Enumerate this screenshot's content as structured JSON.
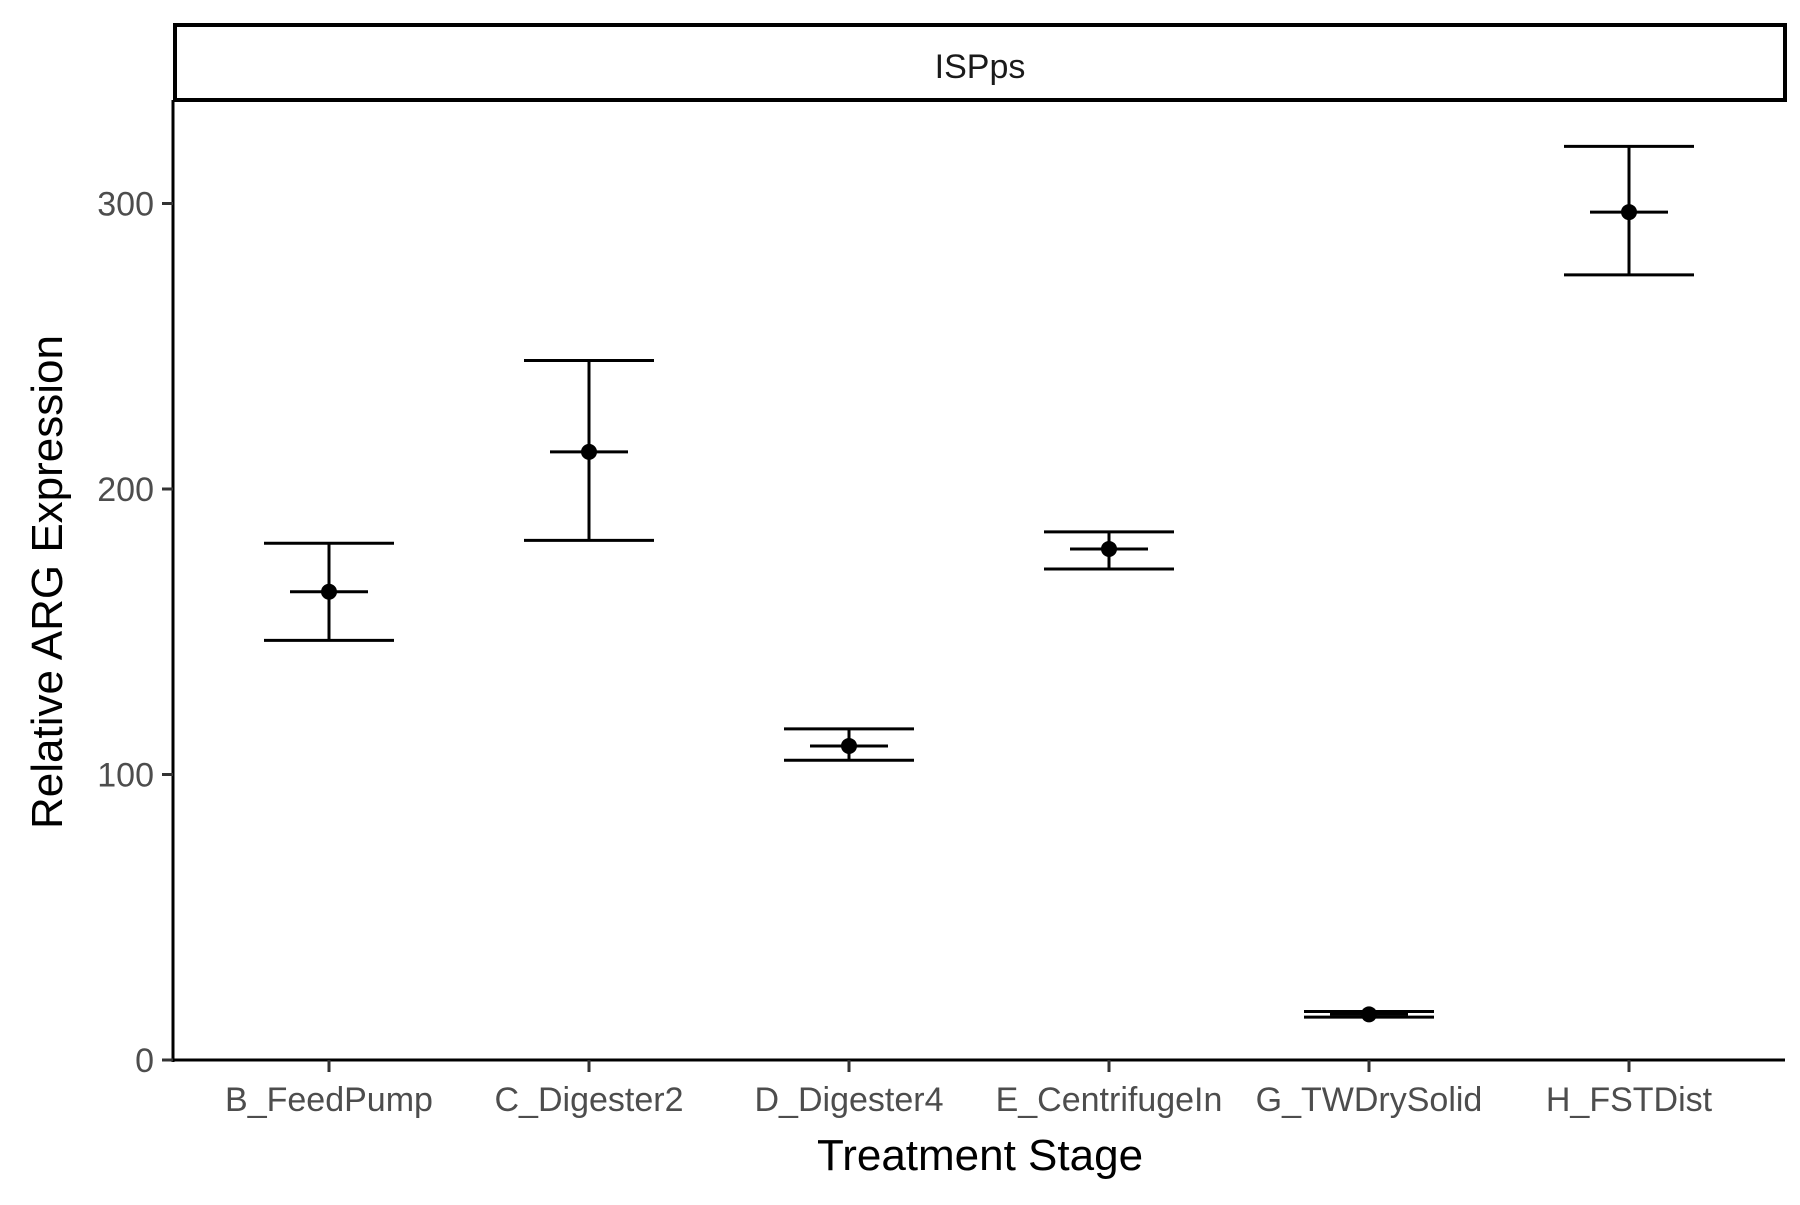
{
  "chart_data": {
    "type": "scatter",
    "facet_label": "ISPps",
    "xlabel": "Treatment Stage",
    "ylabel": "Relative ARG Expression",
    "categories": [
      "B_FeedPump",
      "C_Digester2",
      "D_Digester4",
      "E_CentrifugeIn",
      "G_TWDrySolid",
      "H_FSTDist"
    ],
    "means": [
      164,
      213,
      110,
      179,
      16,
      297
    ],
    "lower": [
      147,
      182,
      105,
      172,
      15,
      275
    ],
    "upper": [
      181,
      245,
      116,
      185,
      17,
      320
    ],
    "y_ticks": [
      0,
      100,
      200,
      300
    ],
    "ylim": [
      0,
      335
    ],
    "grid": false,
    "legend": "none",
    "colors": {
      "point": "#000000",
      "axis": "#000000",
      "tick_text": "#4d4d4d"
    }
  }
}
